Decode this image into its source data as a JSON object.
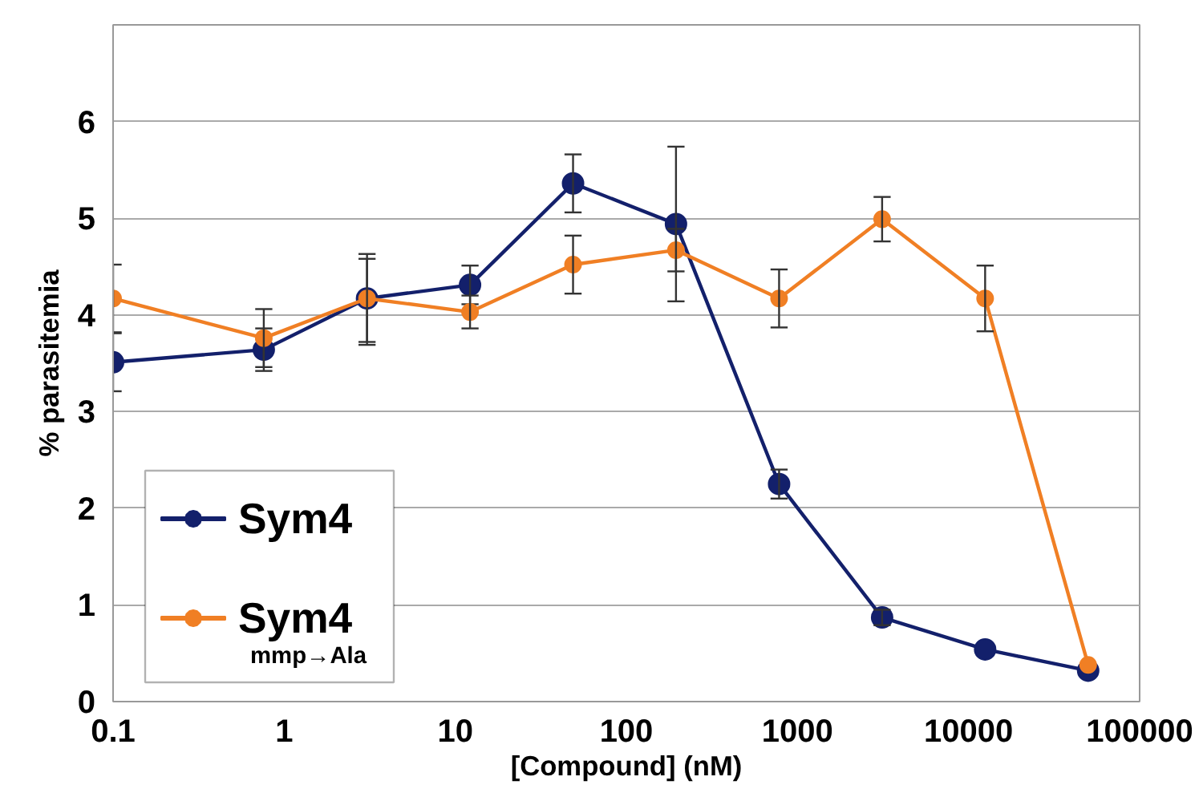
{
  "chart_data": {
    "type": "line",
    "xlabel": "[Compound] (nM)",
    "ylabel": "% parasitemia",
    "x": [
      0.1,
      0.76,
      3.05,
      12.2,
      48.8,
      195,
      781,
      3125,
      12500,
      50000
    ],
    "series": [
      {
        "name": "Sym4",
        "color": "#13206b",
        "values": [
          3.51,
          3.64,
          4.17,
          4.31,
          5.36,
          4.94,
          2.25,
          0.87,
          0.54,
          0.32
        ],
        "errors": [
          0.3,
          0.22,
          [
            3.72,
            4.63
          ],
          0.2,
          0.3,
          0.8,
          0.15,
          0.08,
          null,
          null
        ]
      },
      {
        "name": "Sym4$_{mmp→Ala}$",
        "color": "#f07f24",
        "values": [
          4.17,
          3.76,
          4.17,
          4.03,
          4.52,
          4.67,
          4.17,
          4.99,
          4.17,
          0.38
        ],
        "errors": [
          0.35,
          0.3,
          [
            3.69,
            4.58
          ],
          0.17,
          0.3,
          0.22,
          0.3,
          0.23,
          0.34,
          null
        ]
      }
    ],
    "log": "x",
    "xlim": [
      0.1,
      100000
    ],
    "xticks": [
      0.1,
      1,
      10,
      100,
      1000,
      10000,
      100000
    ],
    "ylim": [
      0,
      7
    ],
    "yticks": [
      0,
      1,
      2,
      3,
      4,
      5,
      6
    ],
    "grid": "y",
    "legend": "bottom left",
    "marker": "circle",
    "line_style": "solid"
  }
}
